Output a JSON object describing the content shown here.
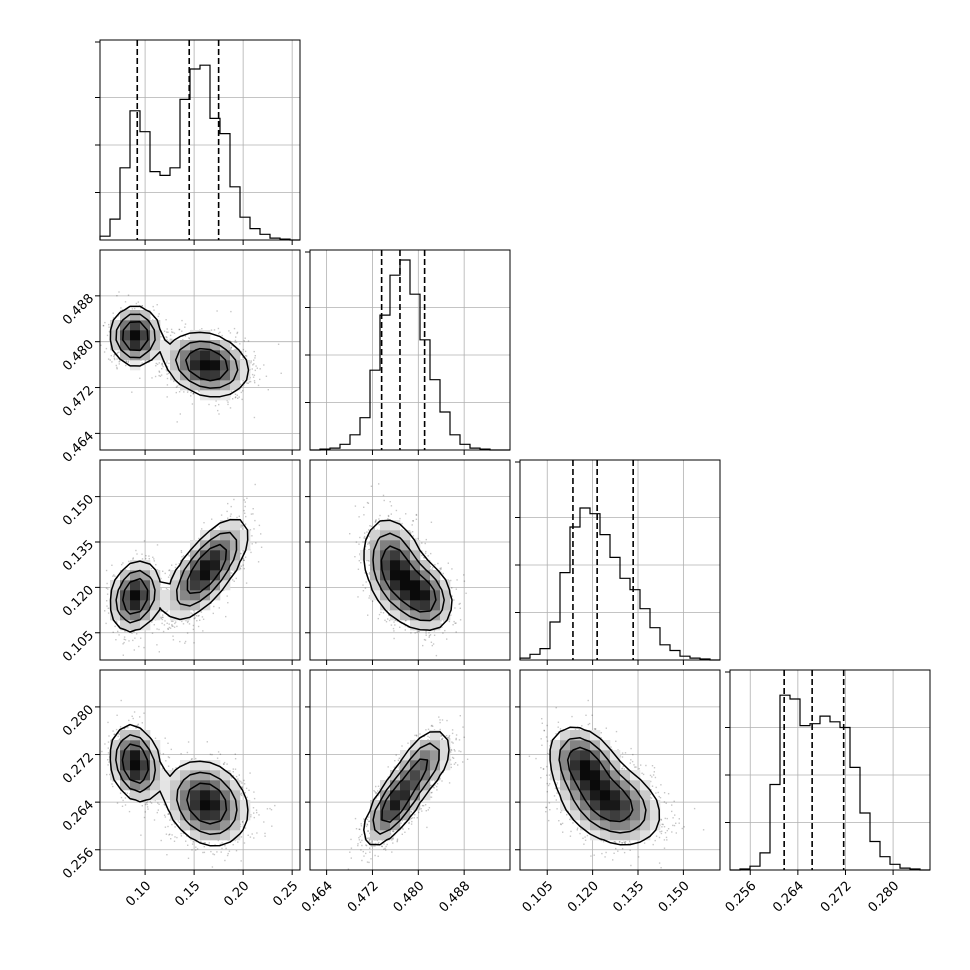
{
  "chart_data": {
    "type": "corner",
    "parameters": [
      {
        "ticks": [
          0.1,
          0.15,
          0.2,
          0.25
        ],
        "tick_labels": [
          "0.10",
          "0.15",
          "0.20",
          "0.25"
        ],
        "range": [
          0.054,
          0.258
        ]
      },
      {
        "ticks": [
          0.464,
          0.472,
          0.48,
          0.488
        ],
        "tick_labels": [
          "0.464",
          "0.472",
          "0.480",
          "0.488"
        ],
        "range": [
          0.4611,
          0.496
        ]
      },
      {
        "ticks": [
          0.105,
          0.12,
          0.135,
          0.15
        ],
        "tick_labels": [
          "0.105",
          "0.120",
          "0.135",
          "0.150"
        ],
        "range": [
          0.096,
          0.1621
        ]
      },
      {
        "ticks": [
          0.256,
          0.264,
          0.272,
          0.28
        ],
        "tick_labels": [
          "0.256",
          "0.264",
          "0.272",
          "0.280"
        ],
        "range": [
          0.2526,
          0.2862
        ]
      }
    ],
    "quantile_lines": [
      [
        0.092,
        0.145,
        0.175
      ],
      [
        0.4736,
        0.4768,
        0.4811
      ],
      [
        0.1135,
        0.1215,
        0.1334
      ],
      [
        0.2617,
        0.2664,
        0.2717
      ]
    ],
    "histograms": [
      [
        0.02,
        0.11,
        0.38,
        0.68,
        0.57,
        0.36,
        0.34,
        0.38,
        0.74,
        0.9,
        0.92,
        0.64,
        0.56,
        0.28,
        0.12,
        0.06,
        0.03,
        0.01,
        0.005,
        0.0
      ],
      [
        0.0,
        0.005,
        0.01,
        0.03,
        0.08,
        0.17,
        0.42,
        0.71,
        0.92,
        1.0,
        0.82,
        0.58,
        0.37,
        0.2,
        0.08,
        0.03,
        0.01,
        0.005,
        0.0,
        0.0
      ],
      [
        0.01,
        0.03,
        0.06,
        0.2,
        0.46,
        0.7,
        0.8,
        0.77,
        0.66,
        0.54,
        0.43,
        0.37,
        0.27,
        0.17,
        0.08,
        0.05,
        0.02,
        0.01,
        0.005,
        0.0
      ],
      [
        0.0,
        0.005,
        0.02,
        0.09,
        0.45,
        0.92,
        0.9,
        0.76,
        0.77,
        0.81,
        0.78,
        0.75,
        0.54,
        0.3,
        0.15,
        0.07,
        0.03,
        0.01,
        0.005,
        0.0
      ]
    ],
    "clusters": [
      {
        "weight": 0.37,
        "mean": [
          0.09,
          0.481,
          0.117,
          0.2705
        ],
        "sd": [
          0.012,
          0.0024,
          0.0055,
          0.003
        ],
        "corr": {
          "0-1": 0.0,
          "0-2": 0.2,
          "0-3": -0.2,
          "1-2": -0.2,
          "1-3": 0.5,
          "2-3": -0.3
        }
      },
      {
        "weight": 0.63,
        "mean": [
          0.163,
          0.476,
          0.126,
          0.2638
        ],
        "sd": [
          0.02,
          0.0026,
          0.008,
          0.0034
        ],
        "corr": {
          "0-1": -0.2,
          "0-2": 0.7,
          "0-3": -0.2,
          "1-2": -0.3,
          "1-3": 0.7,
          "2-3": -0.3
        }
      }
    ],
    "grid": true,
    "xlabel": "",
    "ylabel": ""
  }
}
